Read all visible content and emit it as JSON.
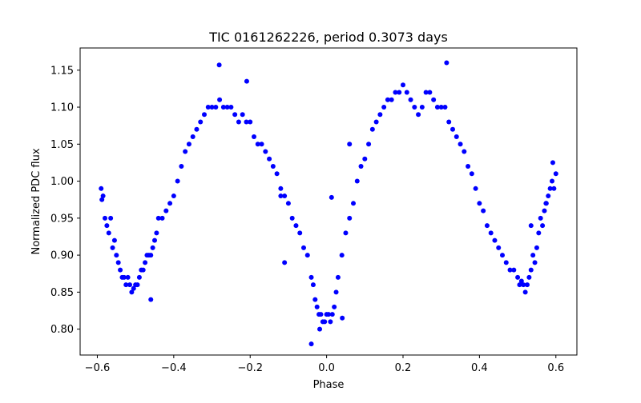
{
  "chart_data": {
    "type": "scatter",
    "title": "TIC 0161262226, period 0.3073 days",
    "xlabel": "Phase",
    "ylabel": "Normalized PDC flux",
    "xlim": [
      -0.645,
      0.655
    ],
    "ylim": [
      0.765,
      1.18
    ],
    "xticks": [
      -0.6,
      -0.4,
      -0.2,
      0.0,
      0.2,
      0.4,
      0.6
    ],
    "xtick_labels": [
      "−0.6",
      "−0.4",
      "−0.2",
      "0.0",
      "0.2",
      "0.4",
      "0.6"
    ],
    "yticks": [
      0.8,
      0.85,
      0.9,
      0.95,
      1.0,
      1.05,
      1.1,
      1.15
    ],
    "ytick_labels": [
      "0.80",
      "0.85",
      "0.90",
      "0.95",
      "1.00",
      "1.05",
      "1.10",
      "1.15"
    ],
    "grid": false,
    "legend": "none",
    "marker_color": "#0000ff",
    "series": [
      {
        "x": [
          -0.59,
          -0.588,
          -0.585,
          -0.58,
          -0.575,
          -0.57,
          -0.565,
          -0.56,
          -0.555,
          -0.55,
          -0.545,
          -0.54,
          -0.535,
          -0.53,
          -0.525,
          -0.52,
          -0.515,
          -0.51,
          -0.505,
          -0.5,
          -0.495,
          -0.49,
          -0.485,
          -0.48,
          -0.475,
          -0.47,
          -0.465,
          -0.46,
          -0.455,
          -0.45,
          -0.445,
          -0.44,
          -0.43,
          -0.42,
          -0.41,
          -0.4,
          -0.39,
          -0.38,
          -0.37,
          -0.36,
          -0.35,
          -0.34,
          -0.33,
          -0.32,
          -0.31,
          -0.3,
          -0.29,
          -0.28,
          -0.27,
          -0.26,
          -0.25,
          -0.24,
          -0.23,
          -0.22,
          -0.21,
          -0.2,
          -0.19,
          -0.18,
          -0.17,
          -0.16,
          -0.15,
          -0.14,
          -0.13,
          -0.12,
          -0.11,
          -0.1,
          -0.09,
          -0.08,
          -0.07,
          -0.06,
          -0.05,
          -0.04,
          -0.035,
          -0.03,
          -0.025,
          -0.02,
          -0.015,
          -0.01,
          -0.005,
          0.0,
          0.005,
          0.01,
          0.015,
          0.02,
          0.025,
          0.03,
          0.04,
          0.05,
          0.06,
          0.07,
          0.08,
          0.09,
          0.1,
          0.11,
          0.12,
          0.13,
          0.14,
          0.15,
          0.16,
          0.17,
          0.18,
          0.19,
          0.2,
          0.21,
          0.22,
          0.23,
          0.24,
          0.25,
          0.26,
          0.27,
          0.28,
          0.29,
          0.3,
          0.31,
          0.32,
          0.33,
          0.34,
          0.35,
          0.36,
          0.37,
          0.38,
          0.39,
          0.4,
          0.41,
          0.42,
          0.43,
          0.44,
          0.45,
          0.46,
          0.47,
          0.48,
          0.49,
          0.5,
          0.505,
          0.51,
          0.515,
          0.52,
          0.525,
          0.53,
          0.535,
          0.54,
          0.545,
          0.55,
          0.555,
          0.56,
          0.565,
          0.57,
          0.575,
          0.58,
          0.585,
          0.59,
          0.595,
          0.6,
          -0.281,
          0.314,
          -0.209,
          0.013,
          -0.04,
          -0.018,
          0.041,
          -0.46,
          -0.12,
          -0.11,
          0.06,
          0.535,
          0.574,
          0.592
        ],
        "y": [
          0.99,
          0.975,
          0.98,
          0.95,
          0.94,
          0.93,
          0.95,
          0.91,
          0.92,
          0.9,
          0.89,
          0.88,
          0.87,
          0.87,
          0.86,
          0.87,
          0.86,
          0.85,
          0.855,
          0.86,
          0.86,
          0.87,
          0.88,
          0.88,
          0.89,
          0.9,
          0.9,
          0.9,
          0.91,
          0.92,
          0.93,
          0.95,
          0.95,
          0.96,
          0.97,
          0.98,
          1.0,
          1.02,
          1.04,
          1.05,
          1.06,
          1.07,
          1.08,
          1.09,
          1.1,
          1.1,
          1.1,
          1.11,
          1.1,
          1.1,
          1.1,
          1.09,
          1.08,
          1.09,
          1.08,
          1.08,
          1.06,
          1.05,
          1.05,
          1.04,
          1.03,
          1.02,
          1.01,
          0.99,
          0.98,
          0.97,
          0.95,
          0.94,
          0.93,
          0.91,
          0.9,
          0.87,
          0.86,
          0.84,
          0.83,
          0.82,
          0.82,
          0.81,
          0.81,
          0.82,
          0.82,
          0.81,
          0.82,
          0.83,
          0.85,
          0.87,
          0.9,
          0.93,
          0.95,
          0.97,
          1.0,
          1.02,
          1.03,
          1.05,
          1.07,
          1.08,
          1.09,
          1.1,
          1.11,
          1.11,
          1.12,
          1.12,
          1.13,
          1.12,
          1.11,
          1.1,
          1.09,
          1.1,
          1.12,
          1.12,
          1.11,
          1.1,
          1.1,
          1.1,
          1.08,
          1.07,
          1.06,
          1.05,
          1.04,
          1.02,
          1.01,
          0.99,
          0.97,
          0.96,
          0.94,
          0.93,
          0.92,
          0.91,
          0.9,
          0.89,
          0.88,
          0.88,
          0.87,
          0.86,
          0.865,
          0.86,
          0.85,
          0.86,
          0.87,
          0.88,
          0.9,
          0.89,
          0.91,
          0.93,
          0.95,
          0.94,
          0.96,
          0.97,
          0.98,
          0.99,
          1.0,
          0.99,
          1.01,
          1.157,
          1.16,
          1.135,
          0.978,
          0.78,
          0.8,
          0.815,
          0.84,
          0.98,
          0.89,
          1.05,
          0.94,
          0.97,
          1.025
        ]
      }
    ]
  }
}
